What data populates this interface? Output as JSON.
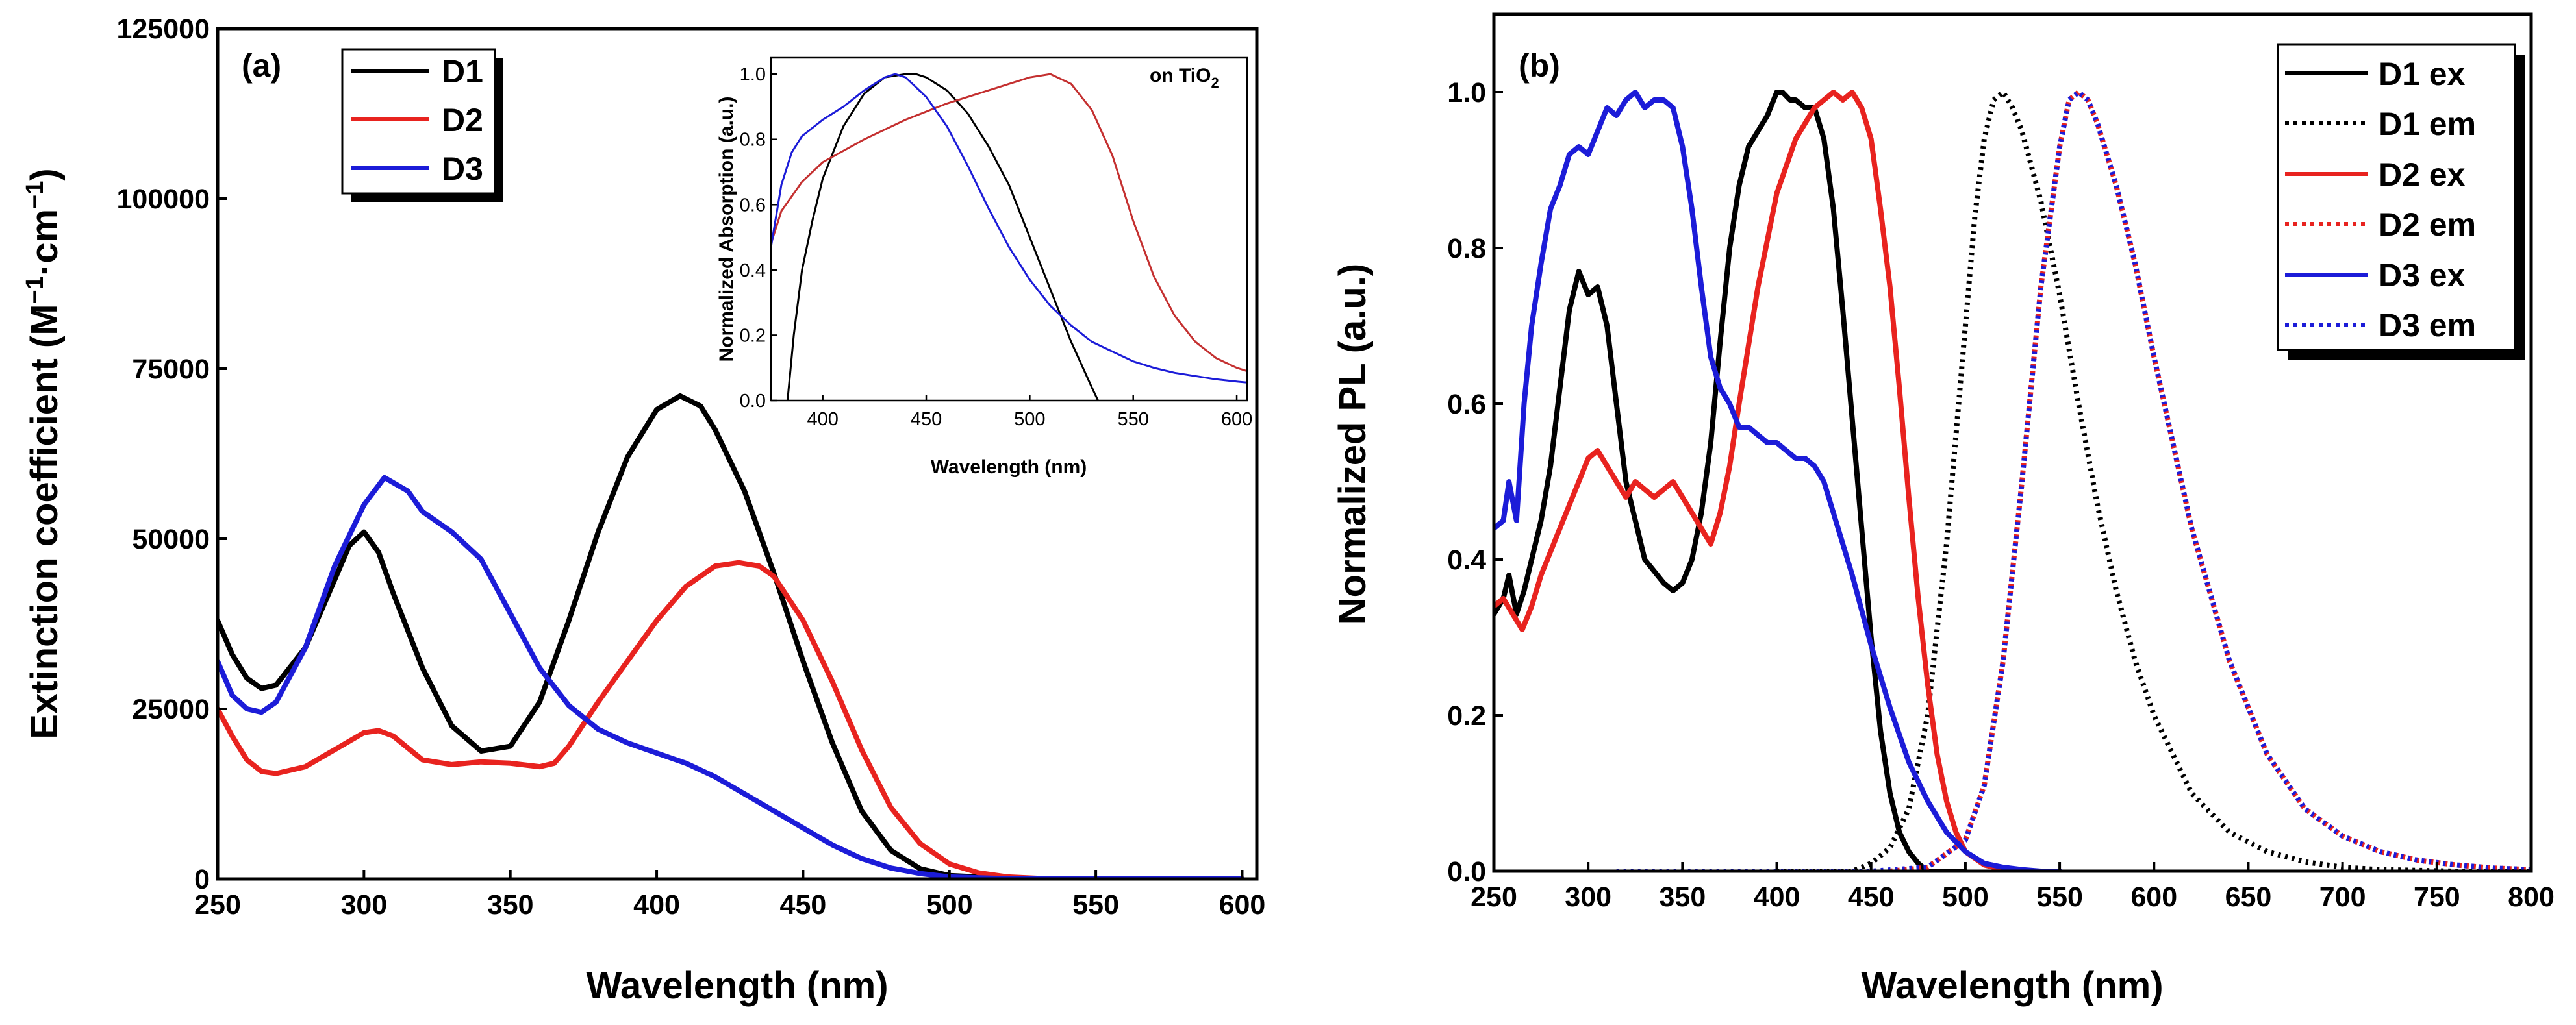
{
  "chart_data": [
    {
      "id": "a",
      "type": "line",
      "panel_label": "(a)",
      "xlabel": "Wavelength (nm)",
      "ylabel": "Extinction coefficient (M",
      "ylabel_sup1": "−1",
      "ylabel_mid": "·cm",
      "ylabel_sup2": "−1",
      "ylabel_end": ")",
      "xlim": [
        250,
        605
      ],
      "ylim": [
        0,
        125000
      ],
      "xticks": [
        250,
        300,
        350,
        400,
        450,
        500,
        550,
        600
      ],
      "yticks": [
        0,
        25000,
        50000,
        75000,
        100000,
        125000
      ],
      "legend_position": "top-left",
      "series": [
        {
          "name": "D1",
          "color": "#000000",
          "style": "solid",
          "x": [
            250,
            255,
            260,
            265,
            270,
            280,
            290,
            295,
            300,
            305,
            310,
            320,
            330,
            340,
            350,
            360,
            370,
            380,
            390,
            400,
            408,
            415,
            420,
            430,
            440,
            450,
            460,
            470,
            480,
            490,
            500,
            520,
            540,
            560,
            580,
            600
          ],
          "y": [
            38000,
            33000,
            29500,
            28000,
            28500,
            34000,
            44000,
            49000,
            51000,
            48000,
            42000,
            31000,
            22500,
            18800,
            19500,
            26000,
            38000,
            51000,
            62000,
            69000,
            71000,
            69500,
            66000,
            57000,
            45000,
            32000,
            20000,
            10000,
            4200,
            1500,
            500,
            100,
            0,
            0,
            0,
            0
          ]
        },
        {
          "name": "D2",
          "color": "#e8231f",
          "style": "solid",
          "x": [
            250,
            255,
            260,
            265,
            270,
            280,
            290,
            300,
            305,
            310,
            320,
            330,
            340,
            350,
            360,
            365,
            370,
            380,
            390,
            400,
            410,
            420,
            428,
            435,
            440,
            450,
            460,
            470,
            480,
            490,
            500,
            510,
            520,
            530,
            540,
            560,
            580,
            600
          ],
          "y": [
            25000,
            21000,
            17500,
            15800,
            15500,
            16500,
            19000,
            21500,
            21800,
            21000,
            17500,
            16800,
            17200,
            17000,
            16500,
            17000,
            19500,
            26000,
            32000,
            38000,
            43000,
            46000,
            46500,
            46000,
            44500,
            38000,
            29000,
            19000,
            10500,
            5200,
            2200,
            900,
            300,
            100,
            0,
            0,
            0,
            0
          ]
        },
        {
          "name": "D3",
          "color": "#1c1cd8",
          "style": "solid",
          "x": [
            250,
            255,
            260,
            265,
            270,
            280,
            290,
            300,
            307,
            315,
            320,
            330,
            340,
            350,
            360,
            370,
            380,
            390,
            400,
            410,
            420,
            430,
            440,
            450,
            460,
            470,
            480,
            490,
            500,
            520,
            540,
            560,
            580,
            600
          ],
          "y": [
            32000,
            27000,
            25000,
            24500,
            26000,
            34000,
            46000,
            55000,
            59000,
            57000,
            54000,
            51000,
            47000,
            39000,
            31000,
            25500,
            22000,
            20000,
            18500,
            17000,
            15000,
            12500,
            10000,
            7500,
            5000,
            3000,
            1600,
            800,
            300,
            50,
            0,
            0,
            0,
            0
          ]
        }
      ]
    },
    {
      "id": "a-inset",
      "type": "line",
      "xlabel": "Wavelength (nm)",
      "ylabel": "Normalized Absorption (a.u.)",
      "annotation": "on TiO",
      "annotation_sub": "2",
      "xlim": [
        375,
        605
      ],
      "ylim": [
        0,
        1.05
      ],
      "xticks": [
        400,
        450,
        500,
        550,
        600
      ],
      "yticks": [
        0.0,
        0.2,
        0.4,
        0.6,
        0.8,
        1.0
      ],
      "xtick_labels": [
        "400",
        "450",
        "500",
        "550",
        "600"
      ],
      "ytick_labels": [
        "0.0",
        "0.2",
        "0.4",
        "0.6",
        "0.8",
        "1.0"
      ],
      "series": [
        {
          "name": "D1",
          "color": "#000000",
          "x": [
            383,
            386,
            390,
            395,
            400,
            410,
            420,
            430,
            440,
            445,
            450,
            460,
            470,
            480,
            490,
            500,
            510,
            520,
            530,
            533
          ],
          "y": [
            0.0,
            0.2,
            0.4,
            0.55,
            0.68,
            0.84,
            0.94,
            0.99,
            1.0,
            1.0,
            0.99,
            0.95,
            0.88,
            0.78,
            0.66,
            0.5,
            0.34,
            0.18,
            0.04,
            0.0
          ]
        },
        {
          "name": "D2",
          "color": "#c43030",
          "x": [
            375,
            380,
            390,
            400,
            420,
            440,
            460,
            480,
            500,
            510,
            520,
            530,
            540,
            550,
            560,
            570,
            580,
            590,
            600,
            605
          ],
          "y": [
            0.48,
            0.58,
            0.67,
            0.73,
            0.8,
            0.86,
            0.91,
            0.95,
            0.99,
            1.0,
            0.97,
            0.89,
            0.75,
            0.55,
            0.38,
            0.26,
            0.18,
            0.13,
            0.1,
            0.09
          ]
        },
        {
          "name": "D3",
          "color": "#1c1cd8",
          "x": [
            375,
            380,
            385,
            390,
            400,
            410,
            420,
            430,
            435,
            440,
            450,
            460,
            470,
            480,
            490,
            500,
            510,
            520,
            530,
            540,
            550,
            560,
            570,
            580,
            590,
            600,
            605
          ],
          "y": [
            0.47,
            0.66,
            0.76,
            0.81,
            0.86,
            0.9,
            0.95,
            0.99,
            1.0,
            0.99,
            0.93,
            0.84,
            0.72,
            0.59,
            0.47,
            0.37,
            0.29,
            0.23,
            0.18,
            0.15,
            0.12,
            0.1,
            0.085,
            0.075,
            0.065,
            0.058,
            0.055
          ]
        }
      ]
    },
    {
      "id": "b",
      "type": "line",
      "panel_label": "(b)",
      "xlabel": "Wavelength (nm)",
      "ylabel": "Normalized PL (a.u.)",
      "xlim": [
        250,
        800
      ],
      "ylim": [
        0,
        1.1
      ],
      "xticks": [
        250,
        300,
        350,
        400,
        450,
        500,
        550,
        600,
        650,
        700,
        750,
        800
      ],
      "yticks": [
        0.0,
        0.2,
        0.4,
        0.6,
        0.8,
        1.0
      ],
      "ytick_labels": [
        "0.0",
        "0.2",
        "0.4",
        "0.6",
        "0.8",
        "1.0"
      ],
      "legend_position": "top-right",
      "series": [
        {
          "name": "D1 ex",
          "color": "#000000",
          "style": "solid",
          "x": [
            250,
            255,
            258,
            262,
            266,
            270,
            275,
            280,
            285,
            290,
            295,
            300,
            305,
            310,
            315,
            320,
            330,
            340,
            345,
            350,
            355,
            360,
            365,
            370,
            375,
            380,
            385,
            390,
            395,
            400,
            403,
            407,
            410,
            415,
            420,
            425,
            430,
            435,
            440,
            445,
            450,
            455,
            460,
            465,
            470,
            475,
            480,
            490,
            500
          ],
          "y": [
            0.33,
            0.35,
            0.38,
            0.33,
            0.36,
            0.4,
            0.45,
            0.52,
            0.62,
            0.72,
            0.77,
            0.74,
            0.75,
            0.7,
            0.6,
            0.5,
            0.4,
            0.37,
            0.36,
            0.37,
            0.4,
            0.46,
            0.55,
            0.68,
            0.8,
            0.88,
            0.93,
            0.95,
            0.97,
            1.0,
            1.0,
            0.99,
            0.99,
            0.98,
            0.98,
            0.94,
            0.85,
            0.72,
            0.58,
            0.44,
            0.3,
            0.18,
            0.1,
            0.05,
            0.025,
            0.01,
            0.0,
            0.0,
            0.0
          ]
        },
        {
          "name": "D1 em",
          "color": "#000000",
          "style": "dotted",
          "x": [
            400,
            420,
            440,
            450,
            460,
            470,
            480,
            490,
            500,
            505,
            510,
            515,
            520,
            525,
            530,
            540,
            550,
            560,
            570,
            580,
            590,
            600,
            620,
            640,
            660,
            680,
            700,
            720,
            740,
            760,
            780,
            800
          ],
          "y": [
            0.0,
            0.0,
            0.0,
            0.01,
            0.03,
            0.08,
            0.2,
            0.42,
            0.7,
            0.84,
            0.94,
            0.99,
            1.0,
            0.98,
            0.95,
            0.86,
            0.74,
            0.6,
            0.47,
            0.36,
            0.27,
            0.2,
            0.1,
            0.05,
            0.025,
            0.012,
            0.005,
            0.002,
            0.001,
            0.0,
            0.0,
            0.0
          ]
        },
        {
          "name": "D2 ex",
          "color": "#e8231f",
          "style": "solid",
          "x": [
            250,
            255,
            260,
            265,
            270,
            275,
            280,
            285,
            290,
            295,
            300,
            305,
            310,
            315,
            320,
            325,
            330,
            335,
            340,
            345,
            350,
            355,
            360,
            365,
            370,
            375,
            380,
            390,
            400,
            410,
            420,
            425,
            430,
            435,
            440,
            445,
            450,
            455,
            460,
            465,
            470,
            475,
            480,
            485,
            490,
            495,
            500,
            510,
            520,
            530,
            540,
            550
          ],
          "y": [
            0.34,
            0.35,
            0.33,
            0.31,
            0.34,
            0.38,
            0.41,
            0.44,
            0.47,
            0.5,
            0.53,
            0.54,
            0.52,
            0.5,
            0.48,
            0.5,
            0.49,
            0.48,
            0.49,
            0.5,
            0.48,
            0.46,
            0.44,
            0.42,
            0.46,
            0.52,
            0.6,
            0.75,
            0.87,
            0.94,
            0.98,
            0.99,
            1.0,
            0.99,
            1.0,
            0.98,
            0.94,
            0.85,
            0.75,
            0.62,
            0.48,
            0.35,
            0.24,
            0.15,
            0.09,
            0.05,
            0.025,
            0.008,
            0.002,
            0.0,
            0.0,
            0.0
          ]
        },
        {
          "name": "D2 em",
          "color": "#e8231f",
          "style": "dotted",
          "x": [
            460,
            480,
            500,
            510,
            520,
            530,
            540,
            550,
            555,
            560,
            565,
            570,
            580,
            590,
            600,
            620,
            640,
            660,
            680,
            700,
            720,
            740,
            760,
            780,
            800
          ],
          "y": [
            0.0,
            0.005,
            0.04,
            0.11,
            0.27,
            0.5,
            0.75,
            0.93,
            0.99,
            1.0,
            0.99,
            0.96,
            0.88,
            0.78,
            0.66,
            0.44,
            0.27,
            0.15,
            0.08,
            0.045,
            0.025,
            0.014,
            0.008,
            0.004,
            0.002
          ]
        },
        {
          "name": "D3 ex",
          "color": "#1c1cd8",
          "style": "solid",
          "x": [
            250,
            255,
            258,
            262,
            266,
            270,
            275,
            280,
            285,
            290,
            295,
            300,
            305,
            310,
            315,
            320,
            325,
            330,
            335,
            340,
            345,
            350,
            355,
            360,
            365,
            370,
            375,
            380,
            385,
            390,
            395,
            400,
            405,
            410,
            415,
            420,
            425,
            430,
            440,
            450,
            460,
            470,
            480,
            490,
            500,
            510,
            520,
            530,
            540,
            550
          ],
          "y": [
            0.44,
            0.45,
            0.5,
            0.45,
            0.6,
            0.7,
            0.78,
            0.85,
            0.88,
            0.92,
            0.93,
            0.92,
            0.95,
            0.98,
            0.97,
            0.99,
            1.0,
            0.98,
            0.99,
            0.99,
            0.98,
            0.93,
            0.85,
            0.75,
            0.66,
            0.62,
            0.6,
            0.57,
            0.57,
            0.56,
            0.55,
            0.55,
            0.54,
            0.53,
            0.53,
            0.52,
            0.5,
            0.46,
            0.38,
            0.29,
            0.21,
            0.14,
            0.09,
            0.05,
            0.025,
            0.01,
            0.005,
            0.002,
            0.0,
            0.0
          ]
        },
        {
          "name": "D3 em",
          "color": "#1c1cd8",
          "style": "dotted",
          "x": [
            315,
            350,
            400,
            450,
            480,
            500,
            510,
            520,
            530,
            540,
            550,
            555,
            560,
            565,
            570,
            580,
            590,
            600,
            620,
            640,
            660,
            680,
            700,
            720,
            740,
            760,
            780,
            800
          ],
          "y": [
            0.0,
            0.0,
            0.0,
            0.0,
            0.005,
            0.04,
            0.11,
            0.27,
            0.5,
            0.75,
            0.93,
            0.99,
            1.0,
            0.99,
            0.96,
            0.88,
            0.78,
            0.66,
            0.44,
            0.27,
            0.15,
            0.08,
            0.045,
            0.025,
            0.014,
            0.008,
            0.004,
            0.002
          ]
        }
      ]
    }
  ]
}
